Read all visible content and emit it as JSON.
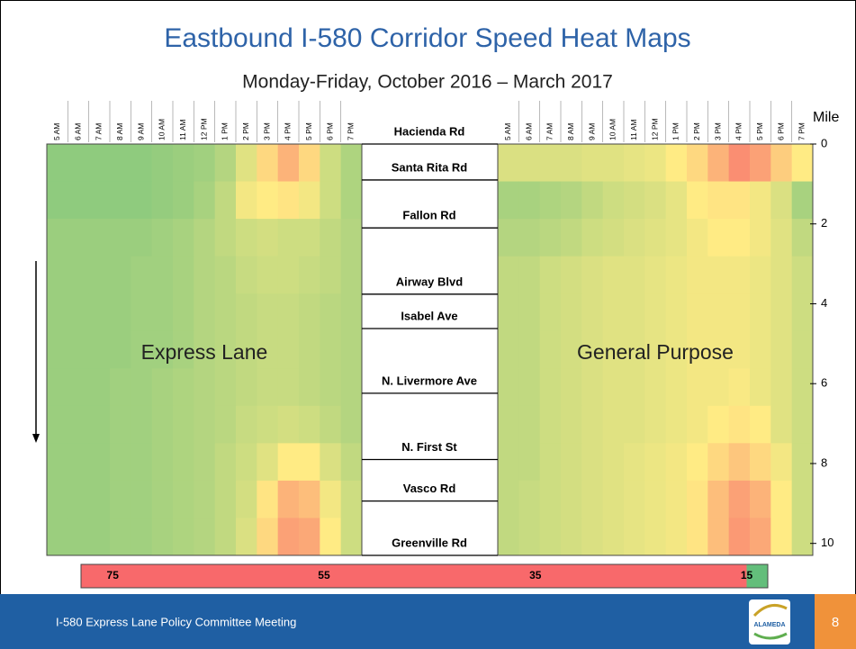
{
  "title": "Eastbound I-580 Corridor Speed Heat Maps",
  "subtitle": "Monday-Friday, October 2016 – March 2017",
  "chart_data": [
    {
      "type": "heatmap",
      "name": "Express Lane",
      "columns": [
        "5 AM",
        "6 AM",
        "7 AM",
        "8 AM",
        "9 AM",
        "10 AM",
        "11 AM",
        "12 PM",
        "1 PM",
        "2 PM",
        "3 PM",
        "4 PM",
        "5 PM",
        "6 PM",
        "7 PM"
      ],
      "ylim": [
        0,
        10.3
      ],
      "values": [
        [
          68,
          68,
          68,
          68,
          68,
          67,
          66,
          65,
          62,
          55,
          45,
          35,
          45,
          58,
          63
        ],
        [
          68,
          68,
          68,
          68,
          68,
          67,
          66,
          64,
          60,
          52,
          50,
          48,
          52,
          58,
          63
        ],
        [
          66,
          66,
          66,
          66,
          66,
          65,
          64,
          62,
          60,
          58,
          57,
          58,
          58,
          60,
          62
        ],
        [
          66,
          66,
          66,
          66,
          65,
          65,
          64,
          62,
          61,
          59,
          58,
          58,
          59,
          60,
          62
        ],
        [
          66,
          66,
          66,
          66,
          65,
          65,
          64,
          62,
          61,
          60,
          59,
          59,
          60,
          61,
          62
        ],
        [
          66,
          66,
          66,
          66,
          65,
          65,
          64,
          62,
          61,
          60,
          59,
          59,
          60,
          61,
          62
        ],
        [
          66,
          66,
          66,
          65,
          65,
          64,
          63,
          62,
          61,
          60,
          59,
          59,
          60,
          61,
          62
        ],
        [
          66,
          66,
          66,
          65,
          65,
          64,
          63,
          62,
          61,
          59,
          58,
          57,
          58,
          60,
          62
        ],
        [
          66,
          66,
          66,
          65,
          65,
          64,
          63,
          62,
          60,
          58,
          55,
          50,
          50,
          56,
          60
        ],
        [
          66,
          66,
          66,
          65,
          65,
          64,
          63,
          62,
          60,
          57,
          48,
          35,
          38,
          52,
          58
        ],
        [
          66,
          66,
          66,
          65,
          65,
          64,
          63,
          62,
          60,
          56,
          45,
          30,
          32,
          50,
          58
        ]
      ]
    },
    {
      "type": "heatmap",
      "name": "General Purpose",
      "columns": [
        "5 AM",
        "6 AM",
        "7 AM",
        "8 AM",
        "9 AM",
        "10 AM",
        "11 AM",
        "12 PM",
        "1 PM",
        "2 PM",
        "3 PM",
        "4 PM",
        "5 PM",
        "6 PM",
        "7 PM"
      ],
      "ylim": [
        0,
        10.3
      ],
      "y_label": "Mile",
      "yticks": [
        0,
        2,
        4,
        6,
        8,
        10
      ],
      "values": [
        [
          56,
          56,
          56,
          56,
          55,
          55,
          54,
          53,
          50,
          45,
          35,
          25,
          30,
          42,
          50
        ],
        [
          64,
          64,
          63,
          62,
          60,
          58,
          57,
          56,
          54,
          50,
          48,
          48,
          52,
          56,
          64
        ],
        [
          62,
          62,
          61,
          60,
          58,
          57,
          56,
          55,
          54,
          52,
          50,
          50,
          52,
          55,
          60
        ],
        [
          60,
          60,
          58,
          57,
          56,
          55,
          55,
          54,
          53,
          52,
          52,
          52,
          53,
          55,
          58
        ],
        [
          60,
          60,
          58,
          57,
          56,
          55,
          55,
          54,
          53,
          52,
          52,
          52,
          53,
          55,
          58
        ],
        [
          60,
          60,
          58,
          57,
          56,
          55,
          55,
          54,
          53,
          52,
          52,
          52,
          53,
          55,
          58
        ],
        [
          60,
          60,
          58,
          57,
          56,
          55,
          55,
          54,
          53,
          52,
          52,
          51,
          53,
          55,
          58
        ],
        [
          60,
          60,
          58,
          57,
          56,
          55,
          55,
          54,
          53,
          52,
          50,
          48,
          50,
          55,
          58
        ],
        [
          60,
          60,
          58,
          57,
          56,
          55,
          54,
          53,
          52,
          50,
          45,
          40,
          45,
          52,
          58
        ],
        [
          60,
          59,
          58,
          57,
          56,
          55,
          54,
          53,
          52,
          48,
          38,
          30,
          35,
          50,
          58
        ],
        [
          60,
          59,
          58,
          57,
          56,
          55,
          54,
          53,
          52,
          48,
          38,
          28,
          32,
          50,
          58
        ]
      ]
    }
  ],
  "roads": [
    {
      "name": "Hacienda Rd",
      "mile": 0
    },
    {
      "name": "Santa Rita Rd",
      "mile": 0.9
    },
    {
      "name": "Fallon Rd",
      "mile": 2.1
    },
    {
      "name": "Airway Blvd",
      "mile": 3.76
    },
    {
      "name": "Isabel Ave",
      "mile": 4.62
    },
    {
      "name": "N. Livermore Ave",
      "mile": 6.24
    },
    {
      "name": "N. First St",
      "mile": 7.9
    },
    {
      "name": "Vasco Rd",
      "mile": 8.94
    },
    {
      "name": "Greenville Rd",
      "mile": 10.3
    }
  ],
  "colorbar": {
    "lim": [
      78,
      13
    ],
    "ticks": [
      75,
      55,
      35,
      15
    ],
    "color_scale": [
      {
        "value": 15,
        "color": "#f8696b"
      },
      {
        "value": 50,
        "color": "#ffeb84"
      },
      {
        "value": 75,
        "color": "#63be7b"
      }
    ]
  },
  "footer": "I-580 Express Lane Policy Committee Meeting",
  "logo": "ALAMEDA",
  "page": "8"
}
